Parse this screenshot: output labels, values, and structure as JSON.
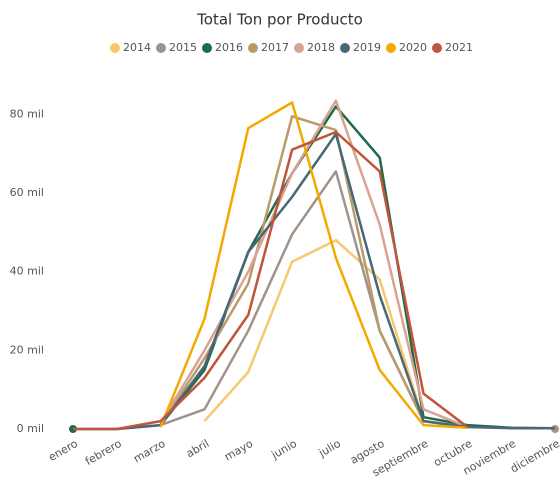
{
  "chart_data": {
    "type": "line",
    "title": "Total Ton por Producto",
    "categories": [
      "enero",
      "febrero",
      "marzo",
      "abril",
      "mayo",
      "junio",
      "julio",
      "agosto",
      "septiembre",
      "octubre",
      "noviembre",
      "diciembre"
    ],
    "series": [
      {
        "name": "2014",
        "color": "#f6c96b",
        "values": [
          null,
          null,
          null,
          2000,
          14500,
          42500,
          48000,
          38000,
          2000,
          500,
          null,
          null
        ]
      },
      {
        "name": "2015",
        "color": "#a0948a",
        "values": [
          null,
          0,
          1000,
          5000,
          25000,
          49500,
          65500,
          25000,
          2000,
          500,
          null,
          0
        ]
      },
      {
        "name": "2016",
        "color": "#1f6b48",
        "values": [
          0,
          null,
          1000,
          15000,
          45000,
          65000,
          82000,
          69000,
          3000,
          1000,
          300,
          200
        ]
      },
      {
        "name": "2017",
        "color": "#b99b6b",
        "values": [
          null,
          null,
          1000,
          18000,
          37000,
          79500,
          76000,
          25000,
          2000,
          500,
          null,
          null
        ]
      },
      {
        "name": "2018",
        "color": "#dba292",
        "values": [
          null,
          null,
          1500,
          20000,
          40000,
          65000,
          83500,
          52000,
          5000,
          500,
          null,
          null
        ]
      },
      {
        "name": "2019",
        "color": "#4a6778",
        "values": [
          0,
          0,
          1000,
          16000,
          45000,
          59000,
          75000,
          34000,
          2000,
          500,
          200,
          200
        ]
      },
      {
        "name": "2020",
        "color": "#f2aa00",
        "values": [
          null,
          null,
          500,
          28000,
          76500,
          83000,
          43500,
          15000,
          1000,
          300,
          null,
          null
        ]
      },
      {
        "name": "2021",
        "color": "#c0553a",
        "values": [
          0,
          0,
          2000,
          13000,
          29000,
          71000,
          75500,
          65500,
          9000,
          500,
          null,
          null
        ]
      }
    ],
    "ylim": [
      0,
      90000
    ],
    "yticks": [
      {
        "value": 0,
        "label": "0 mil"
      },
      {
        "value": 20000,
        "label": "20 mil"
      },
      {
        "value": 40000,
        "label": "40 mil"
      },
      {
        "value": 60000,
        "label": "60 mil"
      },
      {
        "value": 80000,
        "label": "80 mil"
      }
    ],
    "grid": false
  }
}
